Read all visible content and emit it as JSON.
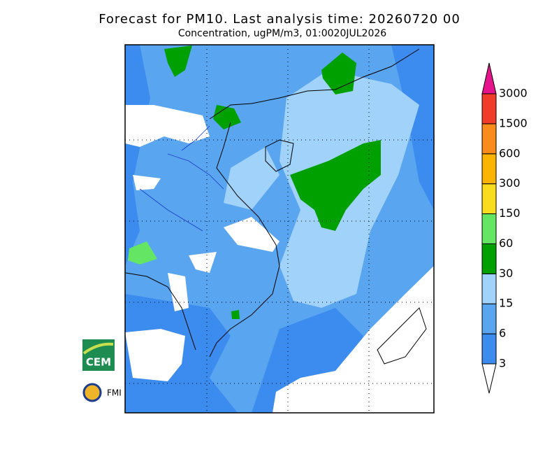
{
  "header": {
    "title": "Forecast for PM10. Last analysis time: 20260720 00",
    "subtitle": "Concentration, ugPM/m3, 01:0020JUL2026"
  },
  "legend": {
    "levels": [
      3,
      6,
      15,
      30,
      60,
      150,
      300,
      600,
      1500,
      3000
    ],
    "colors": [
      "#3c8cf0",
      "#5aa5f0",
      "#a0d2fa",
      "#00a000",
      "#64e664",
      "#fadc1e",
      "#fab400",
      "#fa8c1e",
      "#f03c28"
    ],
    "over_color": "#e6148c",
    "under_color": "#ffffff"
  },
  "logos": {
    "cem": "CEM",
    "fmi": "FMI"
  }
}
